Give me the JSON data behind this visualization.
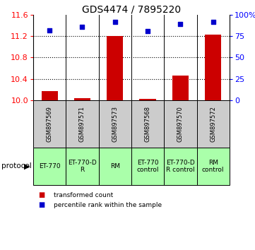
{
  "title": "GDS4474 / 7895220",
  "samples": [
    "GSM897569",
    "GSM897571",
    "GSM897573",
    "GSM897568",
    "GSM897570",
    "GSM897572"
  ],
  "bar_values": [
    10.17,
    10.04,
    11.2,
    10.02,
    10.46,
    11.23
  ],
  "scatter_values": [
    82,
    86,
    92,
    81,
    89,
    92
  ],
  "ylim_left": [
    10,
    11.6
  ],
  "ylim_right": [
    0,
    100
  ],
  "yticks_left": [
    10,
    10.4,
    10.8,
    11.2,
    11.6
  ],
  "yticks_right": [
    0,
    25,
    50,
    75,
    100
  ],
  "ytick_labels_right": [
    "0",
    "25",
    "50",
    "75",
    "100%"
  ],
  "bar_color": "#cc0000",
  "scatter_color": "#0000cc",
  "bar_width": 0.5,
  "group_texts": [
    "ET-770",
    "ET-770-D\nR",
    "RM",
    "ET-770\ncontrol",
    "ET-770-D\nR control",
    "RM\ncontrol"
  ],
  "sample_bg_color": "#cccccc",
  "group_bg_color": "#aaffaa",
  "protocol_label": "protocol",
  "legend_bar_label": "transformed count",
  "legend_scatter_label": "percentile rank within the sample",
  "title_fontsize": 10,
  "tick_fontsize": 8,
  "label_fontsize": 7,
  "sample_fontsize": 6,
  "proto_fontsize": 6.5
}
